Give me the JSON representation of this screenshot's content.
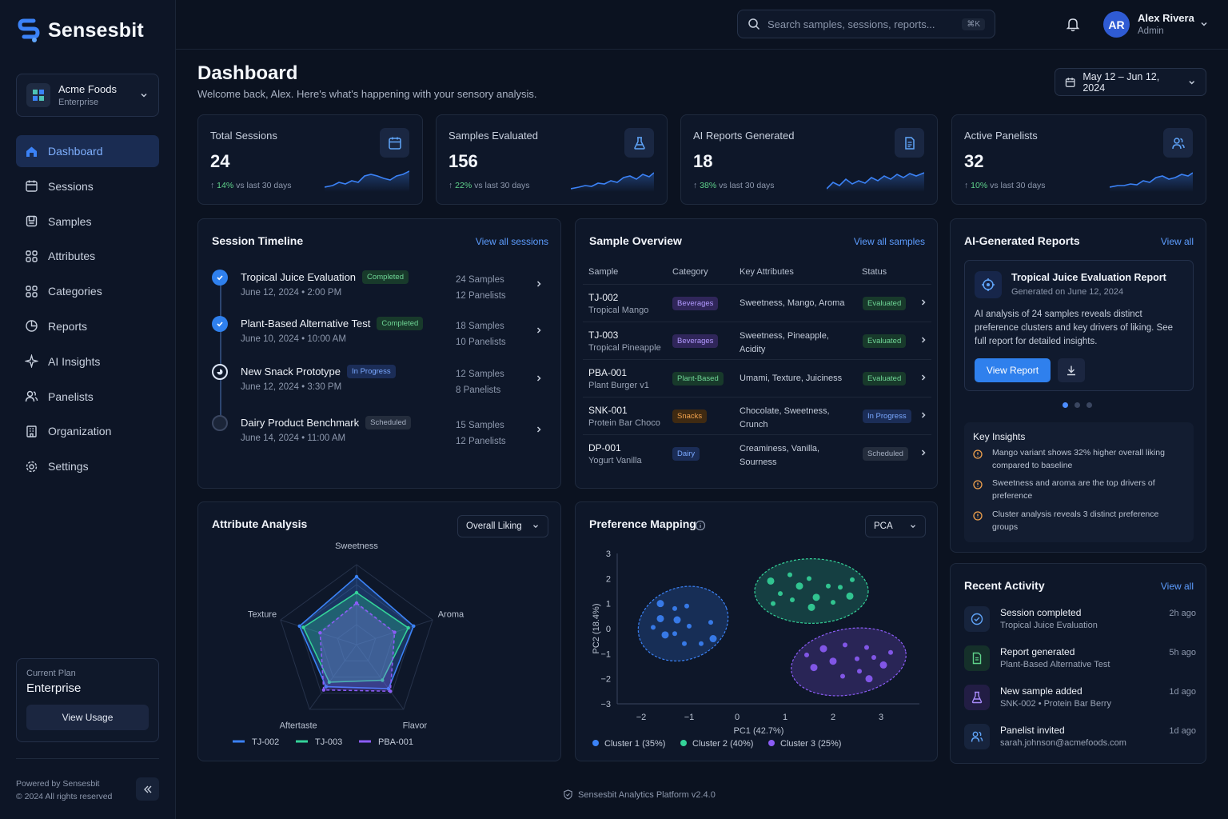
{
  "brand": {
    "name": "Sensesbit"
  },
  "org": {
    "name": "Acme Foods",
    "tier": "Enterprise"
  },
  "nav": [
    "Dashboard",
    "Sessions",
    "Samples",
    "Attributes",
    "Categories",
    "Reports",
    "AI Insights",
    "Panelists",
    "Organization",
    "Settings"
  ],
  "plan": {
    "label": "Current Plan",
    "name": "Enterprise",
    "button": "View Usage"
  },
  "powered": {
    "line1": "Powered by Sensesbit",
    "line2": "© 2024 All rights reserved"
  },
  "search": {
    "placeholder": "Search samples, sessions, reports...",
    "shortcut": "⌘K"
  },
  "user": {
    "initials": "AR",
    "name": "Alex Rivera",
    "role": "Admin"
  },
  "page": {
    "title": "Dashboard",
    "subtitle": "Welcome back, Alex. Here's what's happening with your sensory analysis.",
    "date_range": "May 12 – Jun 12, 2024"
  },
  "stats": [
    {
      "label": "Total Sessions",
      "value": "24",
      "change": "14%",
      "vs": "vs last 30 days",
      "icon": "calendar-icon"
    },
    {
      "label": "Samples Evaluated",
      "value": "156",
      "change": "22%",
      "vs": "vs last 30 days",
      "icon": "flask-icon"
    },
    {
      "label": "AI Reports Generated",
      "value": "18",
      "change": "38%",
      "vs": "vs last 30 days",
      "icon": "document-icon"
    },
    {
      "label": "Active Panelists",
      "value": "32",
      "change": "10%",
      "vs": "vs last 30 days",
      "icon": "users-icon"
    }
  ],
  "timeline": {
    "title": "Session Timeline",
    "link": "View all sessions",
    "items": [
      {
        "title": "Tropical Juice Evaluation",
        "status": "Completed",
        "date": "June 12, 2024",
        "time": "2:00 PM",
        "samples": "24 Samples",
        "panelists": "12 Panelists"
      },
      {
        "title": "Plant-Based Alternative Test",
        "status": "Completed",
        "date": "June 10, 2024",
        "time": "10:00 AM",
        "samples": "18 Samples",
        "panelists": "10 Panelists"
      },
      {
        "title": "New Snack Prototype",
        "status": "In Progress",
        "date": "June 12, 2024",
        "time": "3:30 PM",
        "samples": "12 Samples",
        "panelists": "8 Panelists"
      },
      {
        "title": "Dairy Product Benchmark",
        "status": "Scheduled",
        "date": "June 14, 2024",
        "time": "11:00 AM",
        "samples": "15 Samples",
        "panelists": "12 Panelists"
      }
    ]
  },
  "samples": {
    "title": "Sample Overview",
    "link": "View all samples",
    "headers": [
      "Sample",
      "Category",
      "Key Attributes",
      "Status"
    ],
    "rows": [
      {
        "id": "TJ-002",
        "name": "Tropical Mango",
        "category": "Beverages",
        "attrs": "Sweetness, Mango, Aroma",
        "status": "Evaluated"
      },
      {
        "id": "TJ-003",
        "name": "Tropical Pineapple",
        "category": "Beverages",
        "attrs": "Sweetness, Pineapple, Acidity",
        "status": "Evaluated"
      },
      {
        "id": "PBA-001",
        "name": "Plant Burger v1",
        "category": "Plant-Based",
        "attrs": "Umami, Texture, Juiciness",
        "status": "Evaluated"
      },
      {
        "id": "SNK-001",
        "name": "Protein Bar Choco",
        "category": "Snacks",
        "attrs": "Chocolate, Sweetness, Crunch",
        "status": "In Progress"
      },
      {
        "id": "DP-001",
        "name": "Yogurt Vanilla",
        "category": "Dairy",
        "attrs": "Creaminess, Vanilla, Sourness",
        "status": "Scheduled"
      }
    ]
  },
  "reports": {
    "title": "AI-Generated Reports",
    "link": "View all",
    "report_title": "Tropical Juice Evaluation Report",
    "report_date": "Generated on June 12, 2024",
    "report_desc": "AI analysis of 24 samples reveals distinct preference clusters and key drivers of liking. See full report for detailed insights.",
    "button": "View Report",
    "insights_title": "Key Insights",
    "insights": [
      "Mango variant shows 32% higher overall liking compared to baseline",
      "Sweetness and aroma are the top drivers of preference",
      "Cluster analysis reveals 3 distinct preference groups"
    ]
  },
  "activity": {
    "title": "Recent Activity",
    "link": "View all",
    "items": [
      {
        "title": "Session completed",
        "sub": "Tropical Juice Evaluation",
        "time": "2h ago",
        "icon": "check-circle-icon"
      },
      {
        "title": "Report generated",
        "sub": "Plant-Based Alternative Test",
        "time": "5h ago",
        "icon": "report-icon"
      },
      {
        "title": "New sample added",
        "sub": "SNK-002 • Protein Bar Berry",
        "time": "1d ago",
        "icon": "flask-icon"
      },
      {
        "title": "Panelist invited",
        "sub": "sarah.johnson@acmefoods.com",
        "time": "1d ago",
        "icon": "users-icon"
      }
    ]
  },
  "attribute": {
    "title": "Attribute Analysis",
    "select": "Overall Liking"
  },
  "preference": {
    "title": "Preference Mapping",
    "select": "PCA"
  },
  "footer": "Sensesbit Analytics Platform v2.4.0",
  "chart_data": [
    {
      "type": "radar",
      "axes": [
        "Sweetness",
        "Aroma",
        "Flavor",
        "Aftertaste",
        "Texture"
      ],
      "range": [
        0,
        10
      ],
      "series": [
        {
          "name": "TJ-002",
          "color": "#3b82f6",
          "values": [
            8.5,
            7.5,
            6.8,
            6.5,
            7.5
          ]
        },
        {
          "name": "TJ-003",
          "color": "#34d399",
          "values": [
            6.5,
            6.8,
            5.5,
            5.8,
            7.0
          ]
        },
        {
          "name": "PBA-001",
          "color": "#8b5cf6",
          "values": [
            5.2,
            5.0,
            7.2,
            7.0,
            4.8
          ]
        }
      ]
    },
    {
      "type": "scatter",
      "xlabel": "PC1 (42.7%)",
      "ylabel": "PC2 (18.4%)",
      "xlim": [
        -2.5,
        3.8
      ],
      "ylim": [
        -3,
        3
      ],
      "xticks": [
        -2,
        -1,
        0,
        1,
        2,
        3
      ],
      "yticks": [
        3,
        2,
        1,
        0,
        -1,
        -2,
        -3
      ],
      "series": [
        {
          "name": "Cluster 1 (35%)",
          "color": "#3b82f6",
          "points": [
            [
              -1.6,
              1.0
            ],
            [
              -1.3,
              0.8
            ],
            [
              -1.05,
              0.9
            ],
            [
              -1.25,
              0.35
            ],
            [
              -1.0,
              0.1
            ],
            [
              -1.3,
              -0.2
            ],
            [
              -1.6,
              0.4
            ],
            [
              -0.75,
              -0.6
            ],
            [
              -1.1,
              -0.6
            ],
            [
              -1.5,
              -0.25
            ],
            [
              -0.55,
              0.25
            ],
            [
              -1.75,
              0.05
            ],
            [
              -0.5,
              -0.4
            ]
          ]
        },
        {
          "name": "Cluster 2 (40%)",
          "color": "#34d399",
          "points": [
            [
              0.7,
              1.9
            ],
            [
              1.1,
              2.15
            ],
            [
              1.5,
              2.0
            ],
            [
              1.3,
              1.7
            ],
            [
              0.9,
              1.4
            ],
            [
              1.15,
              1.15
            ],
            [
              1.65,
              1.25
            ],
            [
              1.9,
              1.7
            ],
            [
              2.15,
              1.65
            ],
            [
              2.35,
              1.3
            ],
            [
              2.0,
              1.05
            ],
            [
              0.75,
              1.0
            ],
            [
              1.55,
              0.85
            ],
            [
              2.4,
              1.95
            ]
          ]
        },
        {
          "name": "Cluster 3 (25%)",
          "color": "#8b5cf6",
          "points": [
            [
              1.8,
              -0.8
            ],
            [
              2.25,
              -0.65
            ],
            [
              2.7,
              -0.75
            ],
            [
              2.0,
              -1.3
            ],
            [
              2.5,
              -1.2
            ],
            [
              2.85,
              -1.15
            ],
            [
              1.6,
              -1.55
            ],
            [
              2.2,
              -1.9
            ],
            [
              2.55,
              -1.7
            ],
            [
              3.05,
              -1.45
            ],
            [
              3.2,
              -0.95
            ],
            [
              1.45,
              -1.05
            ],
            [
              2.75,
              -2.0
            ]
          ]
        }
      ]
    }
  ]
}
